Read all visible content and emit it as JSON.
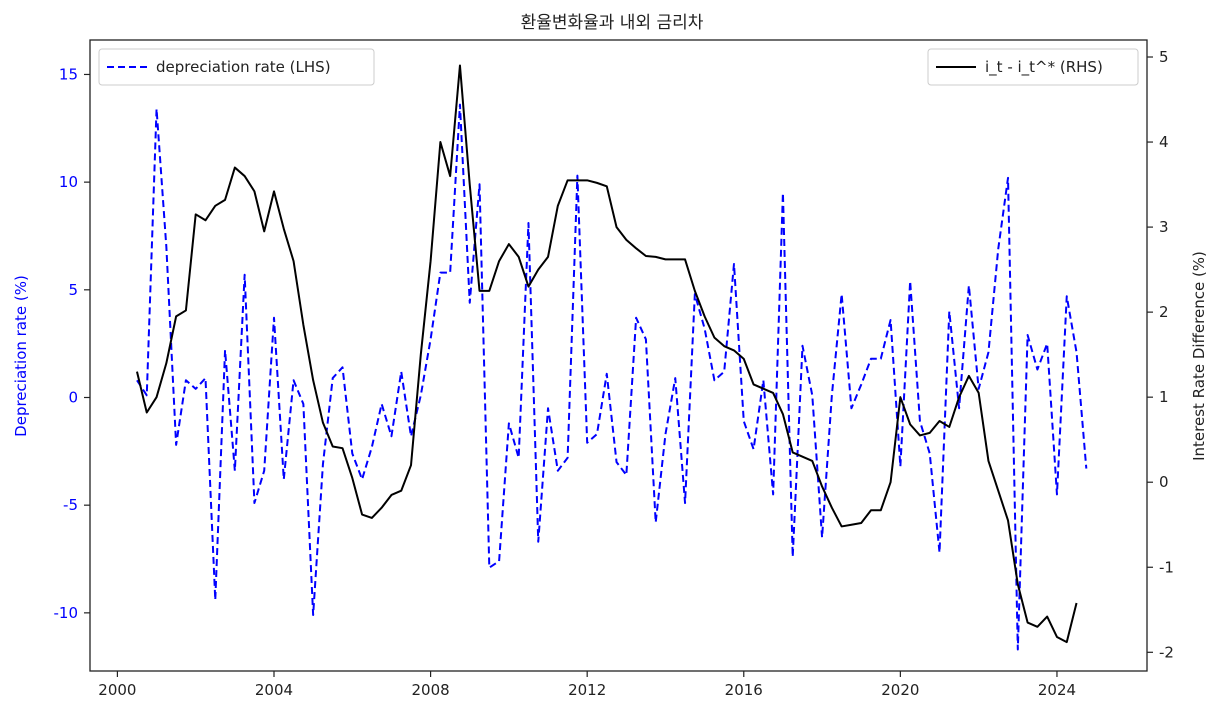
{
  "chart_data": {
    "type": "line",
    "title": "환율변화율과 내외 금리차",
    "x_ticks": [
      2000,
      2004,
      2008,
      2012,
      2016,
      2020,
      2024
    ],
    "xlim": [
      1999.3,
      2026.3
    ],
    "left_axis": {
      "label": "Depreciation rate (%)",
      "ylim": [
        -12.7,
        16.6
      ],
      "ticks": [
        -10,
        -5,
        0,
        5,
        10,
        15
      ],
      "tick_labels": [
        "-10",
        "-5",
        "0",
        "5",
        "10",
        "15"
      ],
      "color": "#0000ff"
    },
    "right_axis": {
      "label": "Interest Rate Difference (%)",
      "ylim": [
        -2.22,
        5.2
      ],
      "ticks": [
        -2,
        -1,
        0,
        1,
        2,
        3,
        4,
        5
      ],
      "tick_labels": [
        "-2",
        "-1",
        "0",
        "1",
        "2",
        "3",
        "4",
        "5"
      ],
      "color": "#222222"
    },
    "series": [
      {
        "name": "depreciation rate (LHS)",
        "axis": "left",
        "style": "dashed",
        "color": "#0000ff",
        "points": [
          [
            2000.5,
            0.8
          ],
          [
            2000.75,
            0.1
          ],
          [
            2001.0,
            13.4
          ],
          [
            2001.25,
            7.0
          ],
          [
            2001.5,
            -2.2
          ],
          [
            2001.75,
            0.8
          ],
          [
            2002.0,
            0.4
          ],
          [
            2002.25,
            0.9
          ],
          [
            2002.5,
            -9.4
          ],
          [
            2002.75,
            2.2
          ],
          [
            2003.0,
            -3.4
          ],
          [
            2003.25,
            5.7
          ],
          [
            2003.5,
            -4.9
          ],
          [
            2003.75,
            -3.4
          ],
          [
            2004.0,
            3.7
          ],
          [
            2004.25,
            -3.8
          ],
          [
            2004.5,
            0.8
          ],
          [
            2004.75,
            -0.3
          ],
          [
            2005.0,
            -10.1
          ],
          [
            2005.25,
            -3.1
          ],
          [
            2005.5,
            0.9
          ],
          [
            2005.75,
            1.4
          ],
          [
            2006.0,
            -2.6
          ],
          [
            2006.25,
            -3.8
          ],
          [
            2006.5,
            -2.3
          ],
          [
            2006.75,
            -0.3
          ],
          [
            2007.0,
            -1.8
          ],
          [
            2007.25,
            1.2
          ],
          [
            2007.5,
            -1.8
          ],
          [
            2007.75,
            0.1
          ],
          [
            2008.0,
            2.7
          ],
          [
            2008.25,
            5.8
          ],
          [
            2008.5,
            5.8
          ],
          [
            2008.75,
            13.6
          ],
          [
            2009.0,
            4.4
          ],
          [
            2009.25,
            9.9
          ],
          [
            2009.5,
            -7.9
          ],
          [
            2009.75,
            -7.6
          ],
          [
            2010.0,
            -1.2
          ],
          [
            2010.25,
            -2.8
          ],
          [
            2010.5,
            8.1
          ],
          [
            2010.75,
            -6.7
          ],
          [
            2011.0,
            -0.5
          ],
          [
            2011.25,
            -3.4
          ],
          [
            2011.5,
            -2.8
          ],
          [
            2011.75,
            10.3
          ],
          [
            2012.0,
            -2.1
          ],
          [
            2012.25,
            -1.7
          ],
          [
            2012.5,
            1.1
          ],
          [
            2012.75,
            -3.0
          ],
          [
            2013.0,
            -3.6
          ],
          [
            2013.25,
            3.7
          ],
          [
            2013.5,
            2.7
          ],
          [
            2013.75,
            -5.8
          ],
          [
            2014.0,
            -1.7
          ],
          [
            2014.25,
            0.9
          ],
          [
            2014.5,
            -4.9
          ],
          [
            2014.75,
            4.8
          ],
          [
            2015.0,
            3.2
          ],
          [
            2015.25,
            0.8
          ],
          [
            2015.5,
            1.2
          ],
          [
            2015.75,
            6.2
          ],
          [
            2016.0,
            -1.1
          ],
          [
            2016.25,
            -2.4
          ],
          [
            2016.5,
            0.8
          ],
          [
            2016.75,
            -4.5
          ],
          [
            2017.0,
            9.5
          ],
          [
            2017.25,
            -7.4
          ],
          [
            2017.5,
            2.4
          ],
          [
            2017.75,
            0.1
          ],
          [
            2018.0,
            -6.5
          ],
          [
            2018.25,
            0.1
          ],
          [
            2018.5,
            4.8
          ],
          [
            2018.75,
            -0.5
          ],
          [
            2019.0,
            0.6
          ],
          [
            2019.25,
            1.8
          ],
          [
            2019.5,
            1.8
          ],
          [
            2019.75,
            3.6
          ],
          [
            2020.0,
            -3.2
          ],
          [
            2020.25,
            5.4
          ],
          [
            2020.5,
            -1.1
          ],
          [
            2020.75,
            -2.6
          ],
          [
            2021.0,
            -7.2
          ],
          [
            2021.25,
            4.0
          ],
          [
            2021.5,
            -0.5
          ],
          [
            2021.75,
            5.2
          ],
          [
            2022.0,
            0.4
          ],
          [
            2022.25,
            2.1
          ],
          [
            2022.5,
            6.9
          ],
          [
            2022.75,
            10.2
          ],
          [
            2023.0,
            -11.7
          ],
          [
            2023.25,
            2.9
          ],
          [
            2023.5,
            1.3
          ],
          [
            2023.75,
            2.5
          ],
          [
            2024.0,
            -4.5
          ],
          [
            2024.25,
            4.7
          ],
          [
            2024.5,
            2.1
          ],
          [
            2024.75,
            -3.3
          ]
        ]
      },
      {
        "name": "i_t - i_t^* (RHS)",
        "axis": "right",
        "style": "solid",
        "color": "#000000",
        "points": [
          [
            2000.5,
            1.3
          ],
          [
            2000.75,
            0.82
          ],
          [
            2001.0,
            1.0
          ],
          [
            2001.25,
            1.4
          ],
          [
            2001.5,
            1.95
          ],
          [
            2001.75,
            2.02
          ],
          [
            2002.0,
            3.15
          ],
          [
            2002.25,
            3.08
          ],
          [
            2002.5,
            3.25
          ],
          [
            2002.75,
            3.32
          ],
          [
            2003.0,
            3.7
          ],
          [
            2003.25,
            3.6
          ],
          [
            2003.5,
            3.42
          ],
          [
            2003.75,
            2.95
          ],
          [
            2004.0,
            3.42
          ],
          [
            2004.25,
            2.98
          ],
          [
            2004.5,
            2.6
          ],
          [
            2004.75,
            1.85
          ],
          [
            2005.0,
            1.2
          ],
          [
            2005.25,
            0.7
          ],
          [
            2005.5,
            0.42
          ],
          [
            2005.75,
            0.4
          ],
          [
            2006.0,
            0.05
          ],
          [
            2006.25,
            -0.38
          ],
          [
            2006.5,
            -0.42
          ],
          [
            2006.75,
            -0.3
          ],
          [
            2007.0,
            -0.15
          ],
          [
            2007.25,
            -0.1
          ],
          [
            2007.5,
            0.2
          ],
          [
            2007.75,
            1.5
          ],
          [
            2008.0,
            2.6
          ],
          [
            2008.25,
            4.0
          ],
          [
            2008.5,
            3.6
          ],
          [
            2008.75,
            4.9
          ],
          [
            2009.0,
            3.5
          ],
          [
            2009.25,
            2.25
          ],
          [
            2009.5,
            2.25
          ],
          [
            2009.75,
            2.6
          ],
          [
            2010.0,
            2.8
          ],
          [
            2010.25,
            2.65
          ],
          [
            2010.5,
            2.3
          ],
          [
            2010.75,
            2.5
          ],
          [
            2011.0,
            2.65
          ],
          [
            2011.25,
            3.25
          ],
          [
            2011.5,
            3.55
          ],
          [
            2011.75,
            3.55
          ],
          [
            2012.0,
            3.55
          ],
          [
            2012.25,
            3.52
          ],
          [
            2012.5,
            3.48
          ],
          [
            2012.75,
            3.0
          ],
          [
            2013.0,
            2.85
          ],
          [
            2013.25,
            2.75
          ],
          [
            2013.5,
            2.66
          ],
          [
            2013.75,
            2.65
          ],
          [
            2014.0,
            2.62
          ],
          [
            2014.25,
            2.62
          ],
          [
            2014.5,
            2.62
          ],
          [
            2014.75,
            2.25
          ],
          [
            2015.0,
            1.95
          ],
          [
            2015.25,
            1.7
          ],
          [
            2015.5,
            1.6
          ],
          [
            2015.75,
            1.55
          ],
          [
            2016.0,
            1.45
          ],
          [
            2016.25,
            1.15
          ],
          [
            2016.5,
            1.1
          ],
          [
            2016.75,
            1.05
          ],
          [
            2017.0,
            0.8
          ],
          [
            2017.25,
            0.35
          ],
          [
            2017.5,
            0.3
          ],
          [
            2017.75,
            0.25
          ],
          [
            2018.0,
            -0.05
          ],
          [
            2018.25,
            -0.3
          ],
          [
            2018.5,
            -0.52
          ],
          [
            2018.75,
            -0.5
          ],
          [
            2019.0,
            -0.48
          ],
          [
            2019.25,
            -0.33
          ],
          [
            2019.5,
            -0.33
          ],
          [
            2019.75,
            0.0
          ],
          [
            2020.0,
            1.0
          ],
          [
            2020.25,
            0.68
          ],
          [
            2020.5,
            0.55
          ],
          [
            2020.75,
            0.58
          ],
          [
            2021.0,
            0.72
          ],
          [
            2021.25,
            0.65
          ],
          [
            2021.5,
            1.0
          ],
          [
            2021.75,
            1.25
          ],
          [
            2022.0,
            1.05
          ],
          [
            2022.25,
            0.25
          ],
          [
            2022.5,
            -0.1
          ],
          [
            2022.75,
            -0.45
          ],
          [
            2023.0,
            -1.2
          ],
          [
            2023.25,
            -1.65
          ],
          [
            2023.5,
            -1.7
          ],
          [
            2023.75,
            -1.58
          ],
          [
            2024.0,
            -1.82
          ],
          [
            2024.25,
            -1.88
          ],
          [
            2024.5,
            -1.42
          ]
        ]
      }
    ],
    "legend_left": {
      "placement": "upper-left",
      "label": "depreciation rate (LHS)"
    },
    "legend_right": {
      "placement": "upper-right",
      "label": "i_t - i_t^* (RHS)"
    },
    "grid": false
  }
}
